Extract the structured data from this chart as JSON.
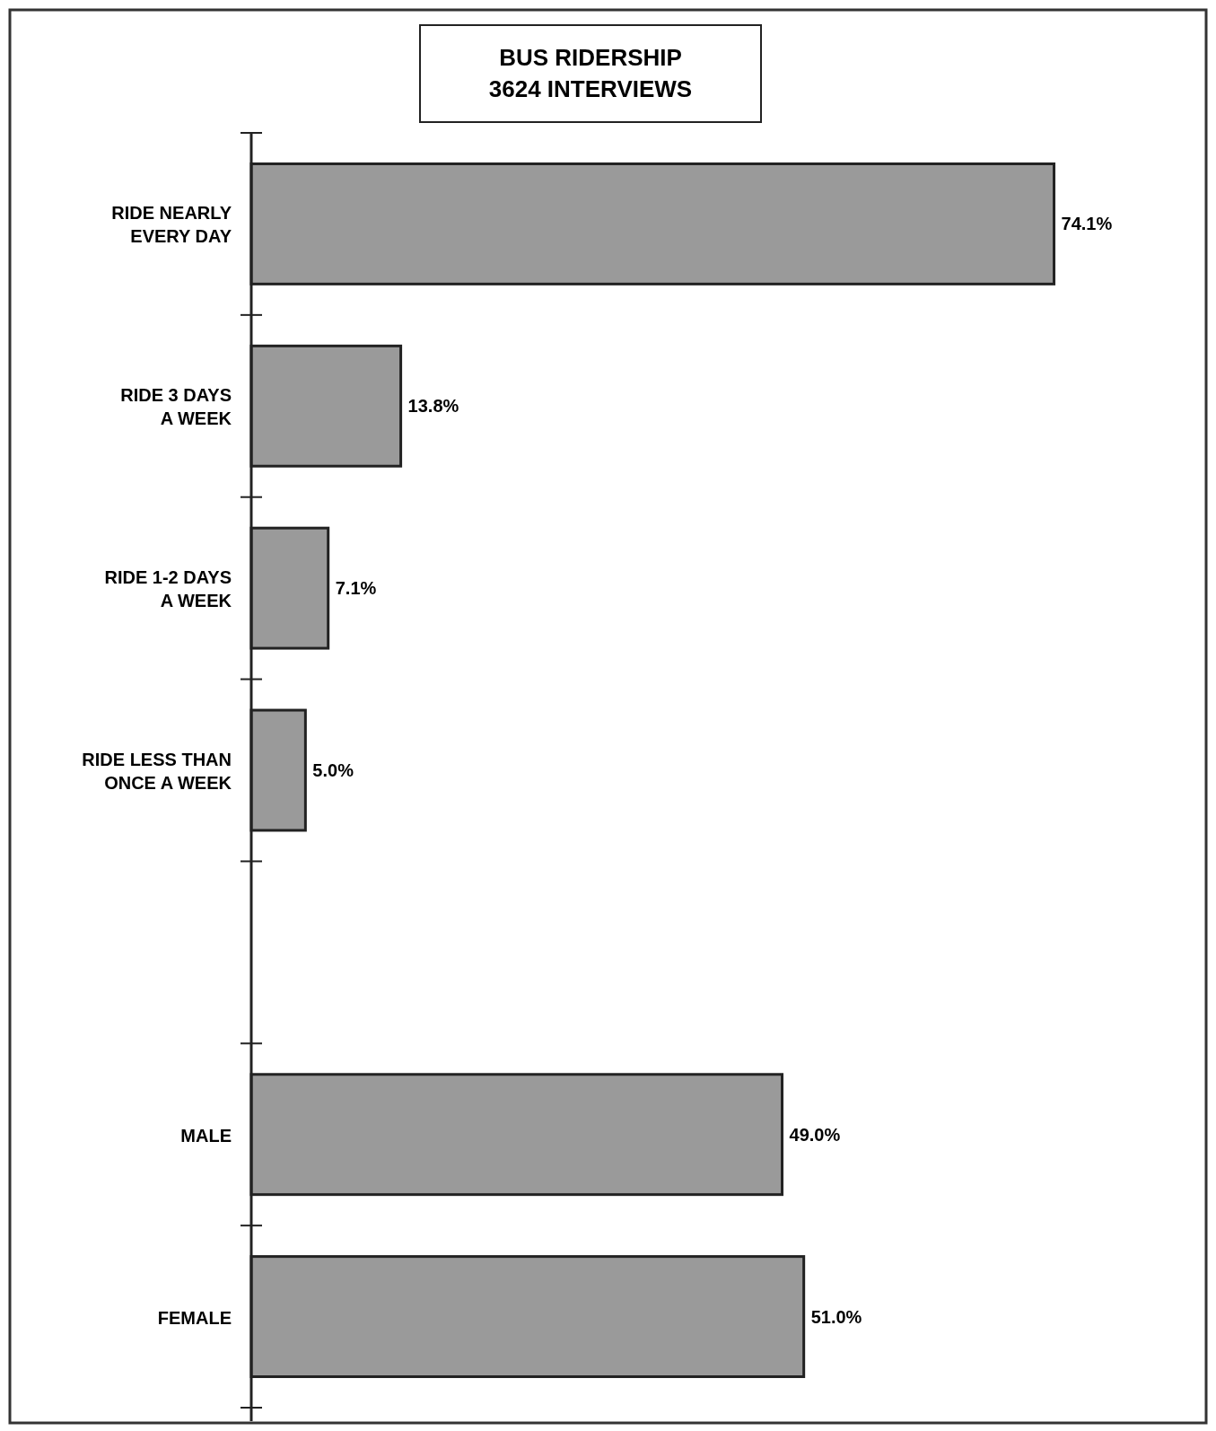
{
  "chart_data": {
    "type": "bar",
    "orientation": "horizontal",
    "title": "BUS RIDERSHIP",
    "subtitle": "3624 INTERVIEWS",
    "categories": [
      "RIDE NEARLY\nEVERY DAY",
      "RIDE 3 DAYS\nA WEEK",
      "RIDE 1-2 DAYS\nA WEEK",
      "RIDE LESS THAN\nONCE A WEEK",
      null,
      "MALE",
      "FEMALE"
    ],
    "values": [
      74.1,
      13.8,
      7.1,
      5.0,
      null,
      49.0,
      51.0
    ],
    "value_labels": [
      "74.1%",
      "13.8%",
      "7.1%",
      "5.0%",
      null,
      "49.0%",
      "51.0%"
    ],
    "color": "#9a9a9a",
    "tick_labels": "y"
  }
}
